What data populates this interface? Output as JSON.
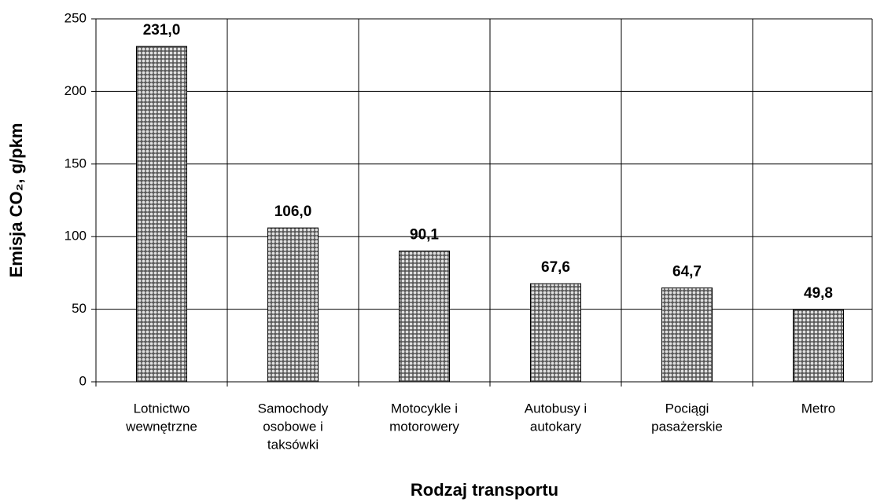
{
  "chart_data": {
    "type": "bar",
    "x_label": "Rodzaj transportu",
    "y_label": "Emisja CO₂, g/pkm",
    "categories": [
      [
        "Lotnictwo",
        "wewnętrzne"
      ],
      [
        "Samochody",
        "osobowe i",
        "taksówki"
      ],
      [
        "Motocykle i",
        "motorowery"
      ],
      [
        "Autobusy i",
        "autokary"
      ],
      [
        "Pociągi",
        "pasażerskie"
      ],
      [
        "Metro"
      ]
    ],
    "values": [
      231.0,
      106.0,
      90.1,
      67.6,
      64.7,
      49.8
    ],
    "value_labels": [
      "231,0",
      "106,0",
      "90,1",
      "67,6",
      "64,7",
      "49,8"
    ],
    "color": "#808080",
    "ylim": [
      0,
      250
    ],
    "yticks": [
      0,
      50,
      100,
      150,
      200,
      250
    ],
    "grid": true
  }
}
